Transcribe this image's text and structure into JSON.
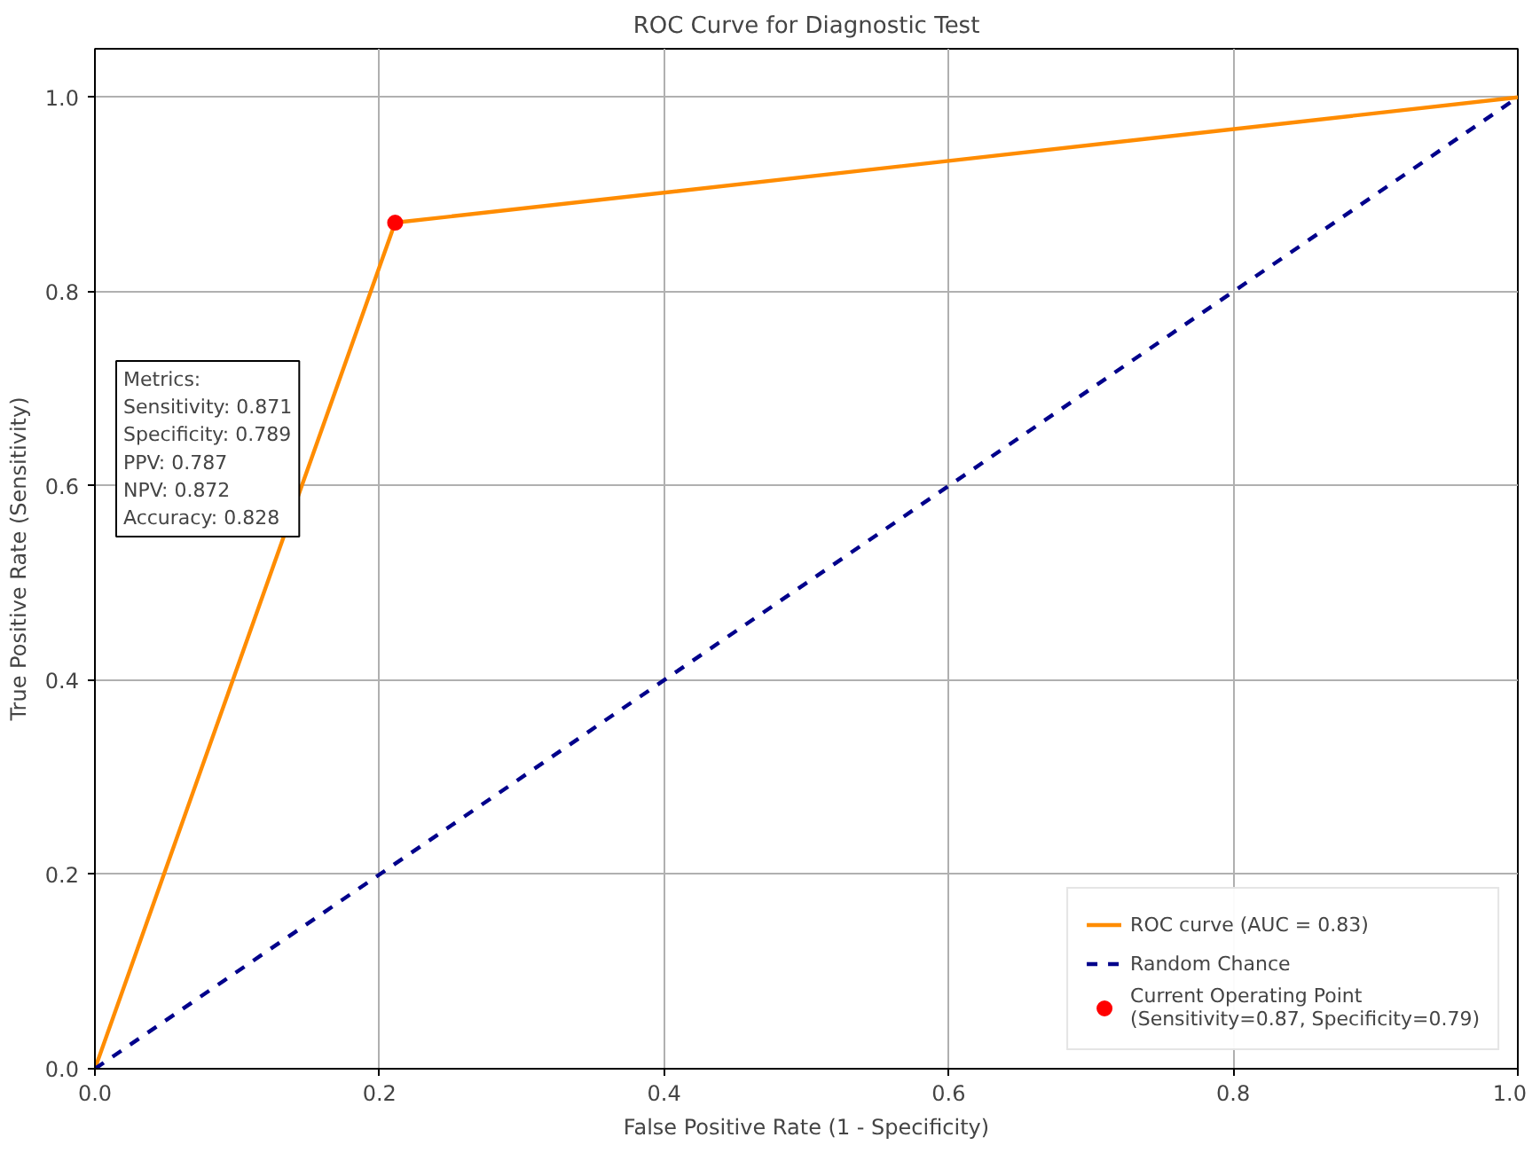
{
  "chart_data": {
    "type": "line",
    "title": "ROC Curve for Diagnostic Test",
    "xlabel": "False Positive Rate (1 - Specificity)",
    "ylabel": "True Positive Rate (Sensitivity)",
    "xlim": [
      0,
      1
    ],
    "ylim": [
      0,
      1.05
    ],
    "xticks": [
      {
        "value": 0,
        "label": "0.0"
      },
      0.2,
      0.4,
      0.6,
      0.8,
      {
        "value": 1,
        "label": "1.0"
      }
    ],
    "yticks": [
      {
        "value": 0,
        "label": "0.0"
      },
      0.2,
      0.4,
      0.6,
      0.8,
      {
        "value": 1,
        "label": "1.0"
      }
    ],
    "grid": true,
    "legend": "bottom right",
    "series": [
      {
        "name": "ROC curve (AUC = 0.83)",
        "color": "#ff8c00",
        "x": [
          0,
          0.211,
          1
        ],
        "values": [
          0,
          0.871,
          1
        ],
        "line_style": "solid"
      },
      {
        "name": "Random Chance",
        "color": "#00008b",
        "x": [
          0,
          1
        ],
        "values": [
          0,
          1
        ],
        "line_style": "dashed"
      },
      {
        "name": "Current Operating Point\n(Sensitivity=0.87, Specificity=0.79)",
        "type": "scatter",
        "color": "#ff0000",
        "x": [
          0.211
        ],
        "values": [
          0.871
        ],
        "marker": "circle"
      }
    ],
    "annotations": [
      "Metrics:\nSensitivity: 0.871\nSpecificity: 0.789\nPPV: 0.787\nNPV: 0.872\nAccuracy: 0.828"
    ]
  }
}
